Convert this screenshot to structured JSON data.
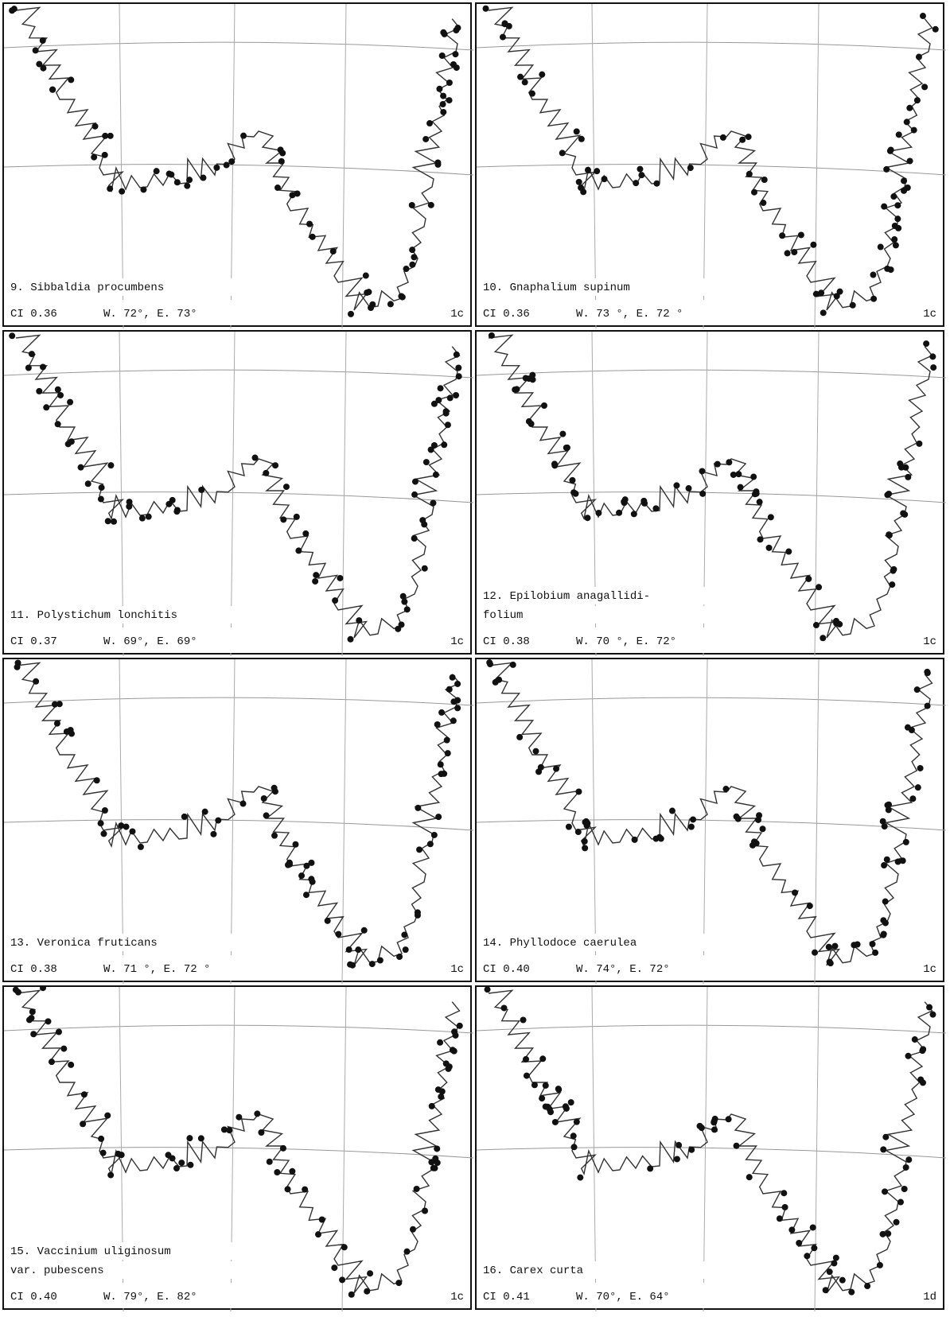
{
  "panels": [
    {
      "name": [
        "9. Sibbaldia procumbens"
      ],
      "ci": "CI 0.36",
      "range": "W. 72°, E. 73°",
      "code": "1c"
    },
    {
      "name": [
        "10. Gnaphalium supinum"
      ],
      "ci": "CI 0.36",
      "range": "W. 73 °, E. 72 °",
      "code": "1c"
    },
    {
      "name": [
        "11. Polystichum lonchitis"
      ],
      "ci": "CI 0.37",
      "range": "W. 69°, E. 69°",
      "code": "1c"
    },
    {
      "name": [
        "12. Epilobium anagallidi-",
        "folium"
      ],
      "ci": "CI 0.38",
      "range": "W. 70 °, E. 72°",
      "code": "1c"
    },
    {
      "name": [
        "13. Veronica fruticans"
      ],
      "ci": "CI 0.38",
      "range": "W. 71 °, E. 72 °",
      "code": "1c"
    },
    {
      "name": [
        "14. Phyllodoce caerulea"
      ],
      "ci": "CI 0.40",
      "range": "W. 74°, E. 72°",
      "code": "1c"
    },
    {
      "name": [
        "15. Vaccinium uliginosum",
        "var. pubescens"
      ],
      "ci": "CI 0.40",
      "range": "W. 79°, E. 82°",
      "code": "1c"
    },
    {
      "name": [
        "16. Carex curta"
      ],
      "ci": "CI 0.41",
      "range": "W. 70°, E. 64°",
      "code": "1d"
    }
  ]
}
